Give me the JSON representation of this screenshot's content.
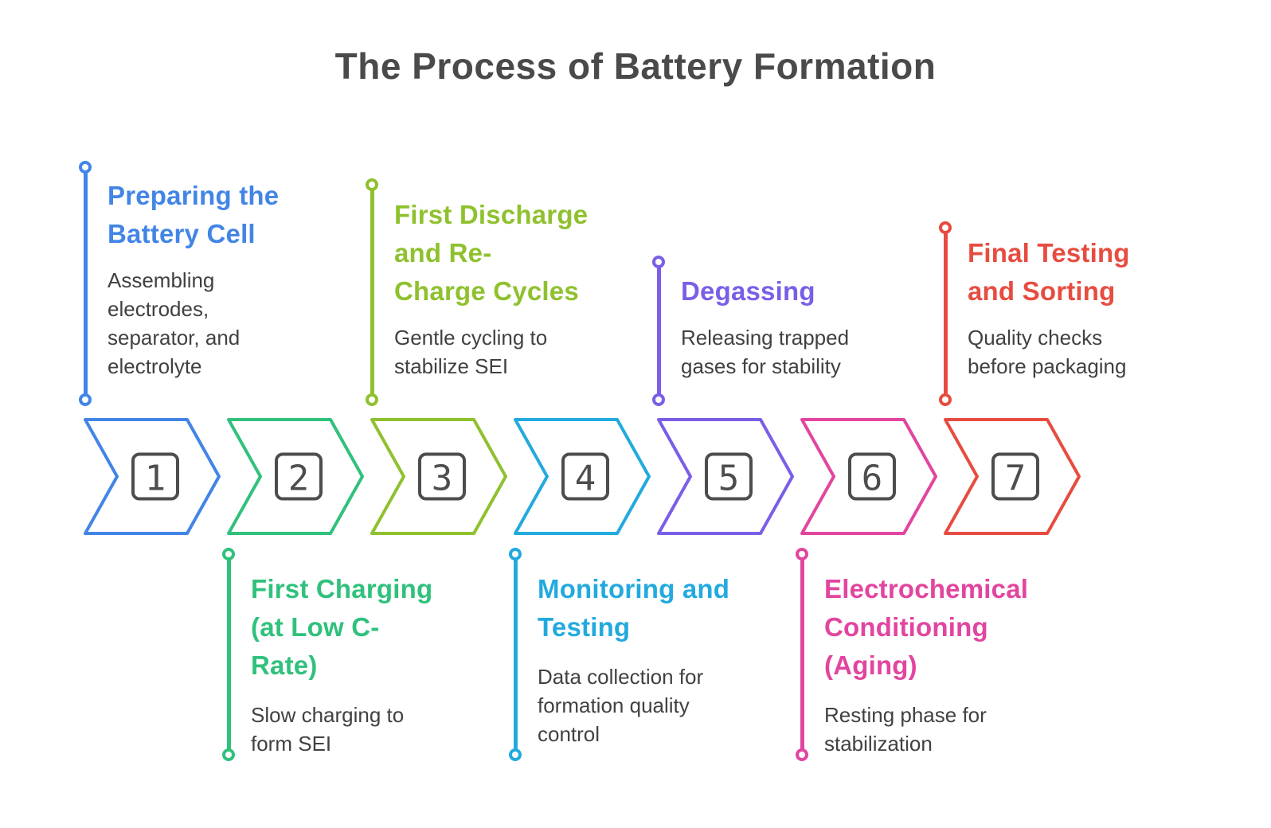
{
  "page": {
    "title": "The Process of Battery Formation",
    "title_color": "#4a4a4a",
    "background": "#ffffff"
  },
  "meta": {
    "square_border": "#4d4d4d",
    "body_text_color": "#414141"
  },
  "steps": [
    {
      "number": "1",
      "color": "#4285e6",
      "callout_position": "above",
      "heading": "Preparing the Battery Cell",
      "heading_lines": [
        "Preparing the",
        "Battery Cell"
      ],
      "body": "Assembling electrodes, separator, and electrolyte",
      "body_lines": [
        "Assembling",
        "electrodes,",
        "separator, and",
        "electrolyte"
      ]
    },
    {
      "number": "2",
      "color": "#30c17c",
      "callout_position": "below",
      "heading": "First Charging (at Low C-Rate)",
      "heading_lines": [
        "First Charging",
        "(at Low C-",
        "Rate)"
      ],
      "body": "Slow charging to form SEI",
      "body_lines": [
        "Slow charging to",
        "form SEI"
      ]
    },
    {
      "number": "3",
      "color": "#8fc12f",
      "callout_position": "above",
      "heading": "First Discharge and Re-Charge Cycles",
      "heading_lines": [
        "First Discharge",
        "and Re-",
        "Charge Cycles"
      ],
      "body": "Gentle cycling to stabilize SEI",
      "body_lines": [
        "Gentle cycling to",
        "stabilize SEI"
      ]
    },
    {
      "number": "4",
      "color": "#22aadf",
      "callout_position": "below",
      "heading": "Monitoring and Testing",
      "heading_lines": [
        "Monitoring and",
        "Testing"
      ],
      "body": "Data collection for formation quality control",
      "body_lines": [
        "Data collection for",
        "formation quality",
        "control"
      ]
    },
    {
      "number": "5",
      "color": "#7b5ee7",
      "callout_position": "above",
      "heading": "Degassing",
      "heading_lines": [
        "Degassing"
      ],
      "body": "Releasing trapped gases for stability",
      "body_lines": [
        "Releasing trapped",
        "gases for stability"
      ]
    },
    {
      "number": "6",
      "color": "#e2459f",
      "callout_position": "below",
      "heading": "Electrochemical Conditioning (Aging)",
      "heading_lines": [
        "Electrochemical",
        "Conditioning",
        "(Aging)"
      ],
      "body": "Resting phase for stabilization",
      "body_lines": [
        "Resting phase for",
        "stabilization"
      ]
    },
    {
      "number": "7",
      "color": "#e74c40",
      "callout_position": "above",
      "heading": "Final Testing and Sorting",
      "heading_lines": [
        "Final Testing",
        "and Sorting"
      ],
      "body": "Quality checks before packaging",
      "body_lines": [
        "Quality checks",
        "before packaging"
      ]
    }
  ]
}
